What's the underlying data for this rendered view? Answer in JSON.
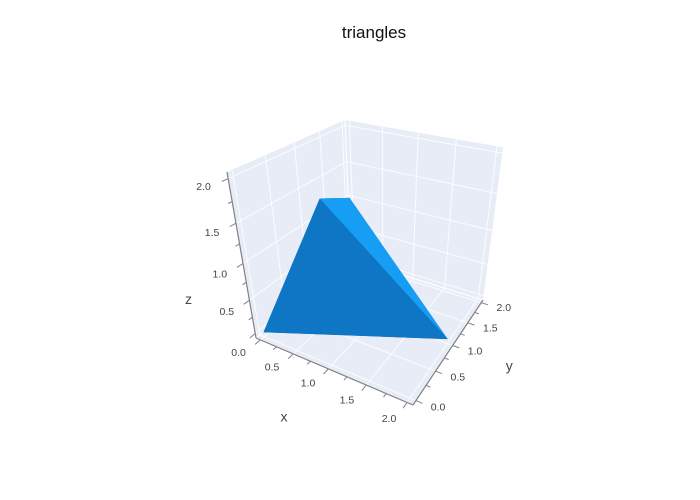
{
  "page": {
    "background": "#ffffff"
  },
  "chart_data": {
    "type": "mesh3d",
    "title": "triangles",
    "axes": {
      "x": {
        "label": "x",
        "range": [
          0,
          2
        ],
        "tickvals": [
          0,
          0.5,
          1,
          1.5,
          2
        ],
        "ticktext": [
          "0.0",
          "0.5",
          "1.0",
          "1.5",
          "2.0"
        ],
        "minor_tickvals": [
          0.25,
          0.75,
          1.25,
          1.75
        ]
      },
      "y": {
        "label": "y",
        "range": [
          0,
          2
        ],
        "tickvals": [
          0,
          0.5,
          1,
          1.5,
          2
        ],
        "ticktext": [
          "0.0",
          "0.5",
          "1.0",
          "1.5",
          "2.0"
        ],
        "minor_tickvals": [
          0.25,
          0.75,
          1.25,
          1.75
        ]
      },
      "z": {
        "label": "z",
        "range": [
          0,
          2
        ],
        "tickvals": [
          0,
          0.5,
          1,
          1.5,
          2
        ],
        "ticktext": [
          "0.0",
          "0.5",
          "1.0",
          "1.5",
          "2.0"
        ],
        "minor_tickvals": [
          0.25,
          0.75,
          1.25,
          1.75
        ]
      }
    },
    "mesh": {
      "vertices": [
        [
          0,
          0,
          0
        ],
        [
          1,
          0,
          2
        ],
        [
          2,
          1,
          0
        ],
        [
          0,
          2,
          1
        ]
      ],
      "faces": [
        {
          "indices": [
            0,
            1,
            2
          ],
          "color": "#0e76c4"
        },
        {
          "indices": [
            0,
            2,
            3
          ],
          "color": "#0a66b0"
        },
        {
          "indices": [
            0,
            3,
            1
          ],
          "color": "#0d6cb5"
        },
        {
          "indices": [
            1,
            2,
            3
          ],
          "color": "#169ef5"
        }
      ],
      "draw_order": [
        1,
        2,
        3,
        0
      ]
    },
    "colors": {
      "wall": "#e7ecf6",
      "grid": "#ffffff",
      "axis_line": "#808088",
      "tick_label": "#444444",
      "axis_title": "#444444",
      "title": "#111111"
    }
  }
}
